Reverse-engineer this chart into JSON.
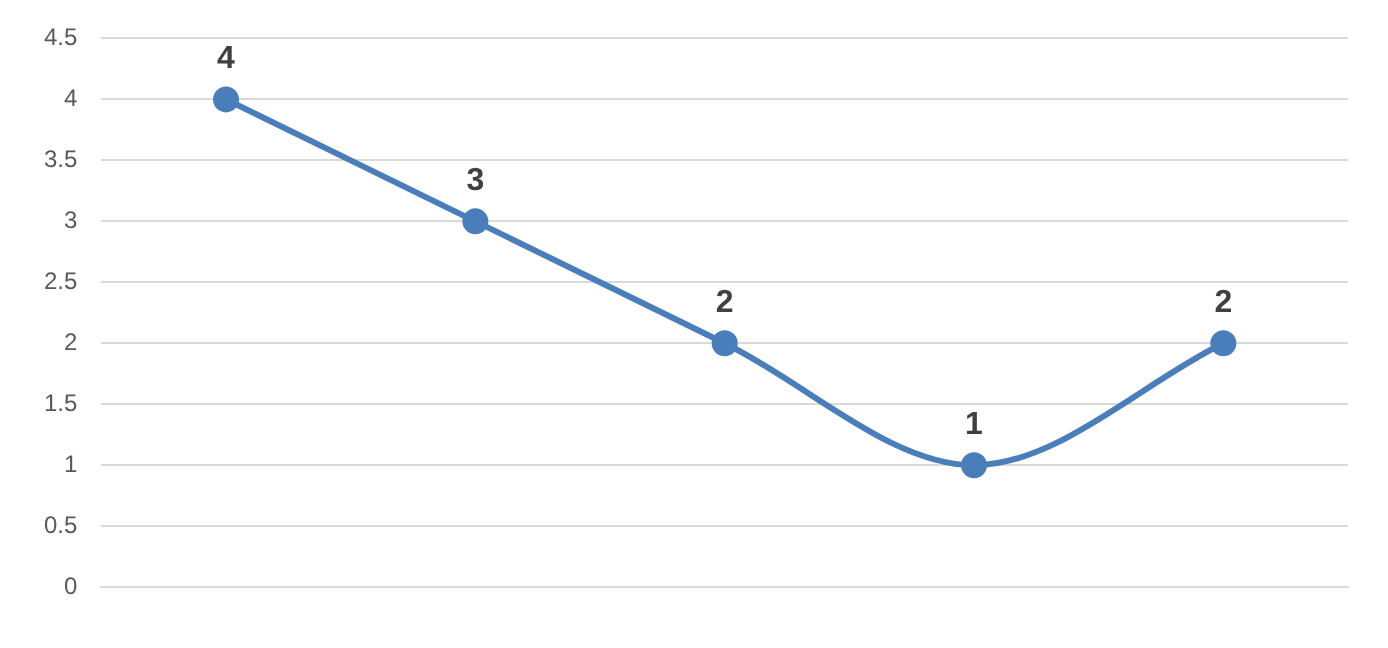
{
  "chart_data": {
    "type": "line",
    "categories": [
      null,
      null,
      null,
      null,
      null
    ],
    "series": [
      {
        "color": "#4a7ebb",
        "values": [
          4,
          3,
          2,
          1,
          2
        ]
      }
    ],
    "ylim": [
      0,
      4.5
    ],
    "yticks": [
      0,
      0.5,
      1,
      1.5,
      2,
      2.5,
      3,
      3.5,
      4,
      4.5
    ],
    "grid": "y",
    "marker": "circle",
    "line_style": "solid",
    "data_labels": true,
    "legend": false
  }
}
